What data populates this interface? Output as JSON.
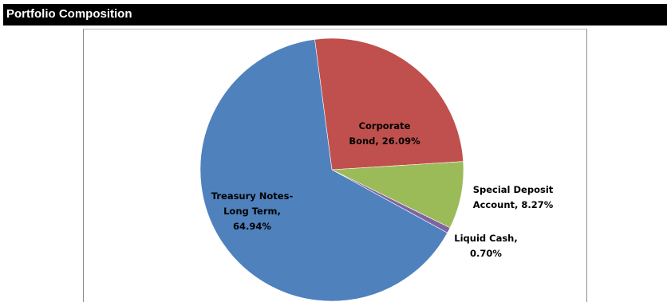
{
  "header": {
    "title": "Portfolio Composition"
  },
  "chart_data": {
    "type": "pie",
    "slices": [
      {
        "label_lines": [
          "Corporate",
          "Bond, 26.09%"
        ],
        "value": 26.09,
        "color": "#C0504D"
      },
      {
        "label_lines": [
          "Special Deposit",
          "Account, 8.27%"
        ],
        "value": 8.27,
        "color": "#9BBB59"
      },
      {
        "label_lines": [
          "Liquid Cash,",
          "0.70%"
        ],
        "value": 0.7,
        "color": "#8064A2"
      },
      {
        "label_lines": [
          "Treasury Notes-",
          "Long Term,",
          "64.94%"
        ],
        "value": 64.94,
        "color": "#4F81BD"
      }
    ]
  }
}
